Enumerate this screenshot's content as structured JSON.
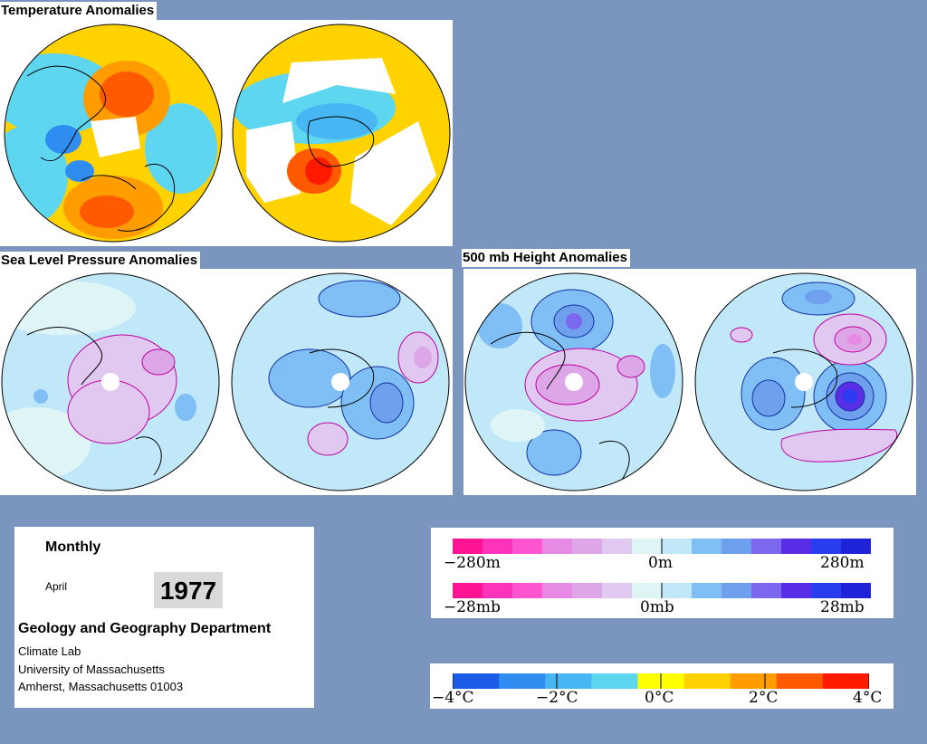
{
  "sections": {
    "temperature": {
      "title": "Temperature Anomalies"
    },
    "slp": {
      "title": "Sea Level Pressure Anomalies"
    },
    "height": {
      "title": "500 mb Height Anomalies"
    }
  },
  "info": {
    "period_type": "Monthly",
    "month": "April",
    "year": "1977",
    "department": "Geology and Geography Department",
    "lab": "Climate Lab",
    "university": "University of Massachusetts",
    "address": "Amherst, Massachusetts 01003"
  },
  "legends": {
    "height": {
      "left": "−280m",
      "center": "0m",
      "right": "280m"
    },
    "pressure": {
      "left": "−28mb",
      "center": "0mb",
      "right": "28mb"
    },
    "temperature": {
      "t1": "−4°C",
      "t2": "−2°C",
      "t3": "0°C",
      "t4": "2°C",
      "t5": "4°C"
    }
  },
  "colors": {
    "background": "#7b96be",
    "anomaly_scale": [
      "#ff1493",
      "#ff33bb",
      "#ff55d0",
      "#e68ae6",
      "#dda6e6",
      "#e0c8f0",
      "#dff5f5",
      "#c0e8f8",
      "#7fbff5",
      "#6fa0ee",
      "#7b68ee",
      "#5a2ee6",
      "#2a3cf0",
      "#1e22d8"
    ],
    "temperature_scale": [
      "#1c5be6",
      "#2f8cf0",
      "#48b6f2",
      "#5ed6f0",
      "#ffff00",
      "#ffd200",
      "#ff9c00",
      "#ff5a00",
      "#ff1a00"
    ]
  }
}
